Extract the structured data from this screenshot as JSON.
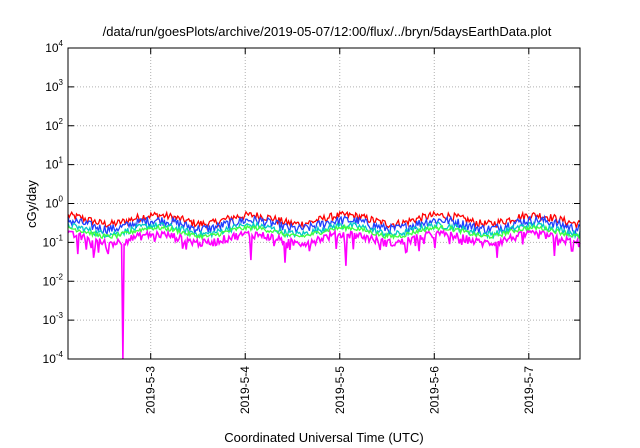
{
  "chart_data": {
    "type": "line",
    "title": "/data/run/goesPlots/archive/2019-05-07/12:00/flux/../bryn/5daysEarthData.plot",
    "xlabel": "Coordinated Universal Time (UTC)",
    "ylabel": "cGy/day",
    "yscale": "log",
    "ylim": [
      0.0001,
      10000
    ],
    "yticks": [
      {
        "base": "10",
        "exp": "-4"
      },
      {
        "base": "10",
        "exp": "-3"
      },
      {
        "base": "10",
        "exp": "-2"
      },
      {
        "base": "10",
        "exp": "-1"
      },
      {
        "base": "10",
        "exp": "0"
      },
      {
        "base": "10",
        "exp": "1"
      },
      {
        "base": "10",
        "exp": "2"
      },
      {
        "base": "10",
        "exp": "3"
      },
      {
        "base": "10",
        "exp": "4"
      }
    ],
    "xlim": [
      "2019-05-02T03:00",
      "2019-05-07T13:00"
    ],
    "xticks": [
      {
        "label": "2019-5-3",
        "value": "2019-05-03T00:00"
      },
      {
        "label": "2019-5-4",
        "value": "2019-05-04T00:00"
      },
      {
        "label": "2019-5-5",
        "value": "2019-05-05T00:00"
      },
      {
        "label": "2019-5-6",
        "value": "2019-05-06T00:00"
      },
      {
        "label": "2019-5-7",
        "value": "2019-05-07T00:00"
      }
    ],
    "grid": true,
    "series": [
      {
        "color": "#ff0000",
        "level": 0.4,
        "noise": 0.12
      },
      {
        "color": "#2040ff",
        "level": 0.3,
        "noise": 0.14
      },
      {
        "color": "#00c8c8",
        "level": 0.22,
        "noise": 0.1
      },
      {
        "color": "#40ff40",
        "level": 0.19,
        "noise": 0.07
      },
      {
        "color": "#ff00ff",
        "level": 0.13,
        "noise": 0.12
      }
    ],
    "dips": [
      {
        "time": "2019-05-02T17:00",
        "value": 0.0001
      },
      {
        "time": "2019-05-02T05:30",
        "value": 0.05
      },
      {
        "time": "2019-05-02T09:30",
        "value": 0.04
      },
      {
        "time": "2019-05-04T01:30",
        "value": 0.035
      },
      {
        "time": "2019-05-04T10:00",
        "value": 0.03
      },
      {
        "time": "2019-05-05T01:30",
        "value": 0.025
      },
      {
        "time": "2019-05-06T16:00",
        "value": 0.04
      },
      {
        "time": "2019-05-07T06:30",
        "value": 0.045
      },
      {
        "time": "2019-05-07T11:00",
        "value": 0.06
      }
    ]
  }
}
